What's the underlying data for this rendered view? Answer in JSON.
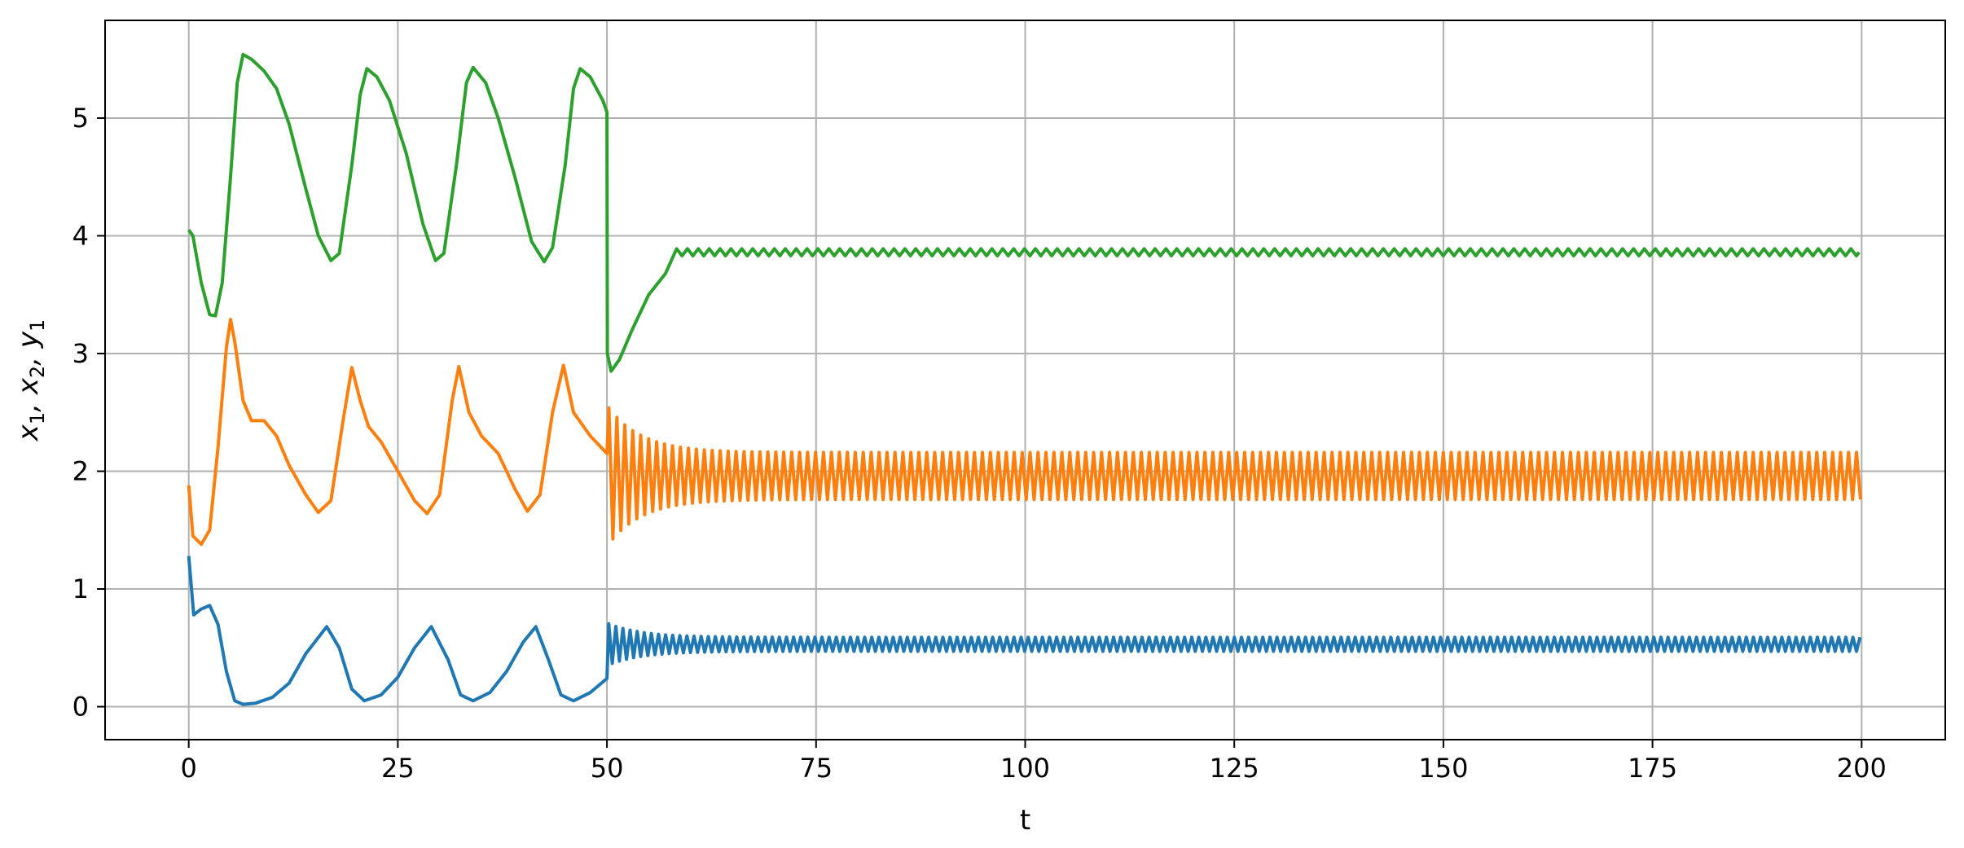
{
  "chart_data": {
    "type": "line",
    "title": "",
    "xlabel": "t",
    "ylabel": {
      "parts": [
        {
          "text": "x",
          "sub": "1"
        },
        {
          "text": ", x",
          "sub": "2"
        },
        {
          "text": ", y",
          "sub": "1"
        }
      ]
    },
    "xlim": [
      -10,
      210
    ],
    "ylim": [
      -0.28,
      5.83
    ],
    "xticks": [
      0,
      25,
      50,
      75,
      100,
      125,
      150,
      175,
      200
    ],
    "yticks": [
      0,
      1,
      2,
      3,
      4,
      5
    ],
    "grid": true,
    "legend": "none",
    "colors": {
      "axis": "#000000",
      "grid": "#b0b0b0"
    },
    "series": [
      {
        "color": "#1f77b4",
        "points": [
          [
            0,
            1.28
          ],
          [
            0.6,
            0.78
          ],
          [
            1.5,
            0.83
          ],
          [
            2.5,
            0.86
          ],
          [
            3.5,
            0.7
          ],
          [
            4.5,
            0.3
          ],
          [
            5.5,
            0.05
          ],
          [
            6.5,
            0.02
          ],
          [
            8,
            0.03
          ],
          [
            10,
            0.08
          ],
          [
            12,
            0.2
          ],
          [
            14,
            0.45
          ],
          [
            16.5,
            0.68
          ],
          [
            18,
            0.5
          ],
          [
            19.5,
            0.15
          ],
          [
            21,
            0.05
          ],
          [
            23,
            0.1
          ],
          [
            25,
            0.25
          ],
          [
            27,
            0.5
          ],
          [
            29,
            0.68
          ],
          [
            31,
            0.4
          ],
          [
            32.5,
            0.1
          ],
          [
            34,
            0.05
          ],
          [
            36,
            0.12
          ],
          [
            38,
            0.3
          ],
          [
            40,
            0.55
          ],
          [
            41.5,
            0.68
          ],
          [
            43,
            0.4
          ],
          [
            44.5,
            0.1
          ],
          [
            46,
            0.05
          ],
          [
            48,
            0.12
          ],
          [
            50,
            0.24
          ]
        ],
        "oscillation": {
          "from": 50,
          "to": 200,
          "center": 0.53,
          "amp_start": 0.18,
          "amp_end": 0.06,
          "period": 0.85
        }
      },
      {
        "color": "#ff7f0e",
        "points": [
          [
            0,
            1.88
          ],
          [
            0.5,
            1.45
          ],
          [
            1.5,
            1.38
          ],
          [
            2.5,
            1.5
          ],
          [
            3.5,
            2.2
          ],
          [
            4.5,
            3.05
          ],
          [
            5,
            3.29
          ],
          [
            5.5,
            3.1
          ],
          [
            6.5,
            2.6
          ],
          [
            7.5,
            2.43
          ],
          [
            9,
            2.43
          ],
          [
            10.5,
            2.3
          ],
          [
            12,
            2.05
          ],
          [
            14,
            1.8
          ],
          [
            15.5,
            1.65
          ],
          [
            17,
            1.75
          ],
          [
            18.5,
            2.45
          ],
          [
            19.5,
            2.88
          ],
          [
            20.5,
            2.6
          ],
          [
            21.5,
            2.38
          ],
          [
            23,
            2.25
          ],
          [
            25,
            2.0
          ],
          [
            27,
            1.75
          ],
          [
            28.5,
            1.64
          ],
          [
            30,
            1.8
          ],
          [
            31.5,
            2.6
          ],
          [
            32.3,
            2.89
          ],
          [
            33.5,
            2.5
          ],
          [
            35,
            2.3
          ],
          [
            37,
            2.15
          ],
          [
            39,
            1.85
          ],
          [
            40.5,
            1.66
          ],
          [
            42,
            1.8
          ],
          [
            43.5,
            2.5
          ],
          [
            44.8,
            2.9
          ],
          [
            46,
            2.5
          ],
          [
            48,
            2.3
          ],
          [
            50,
            2.15
          ]
        ],
        "oscillation": {
          "from": 50,
          "to": 200,
          "center": 1.96,
          "amp_start": 0.6,
          "amp_end": 0.2,
          "period": 0.95
        }
      },
      {
        "color": "#2ca02c",
        "points": [
          [
            0,
            4.05
          ],
          [
            0.5,
            4.0
          ],
          [
            1.5,
            3.6
          ],
          [
            2.5,
            3.33
          ],
          [
            3.2,
            3.32
          ],
          [
            4,
            3.6
          ],
          [
            5,
            4.5
          ],
          [
            5.8,
            5.3
          ],
          [
            6.5,
            5.54
          ],
          [
            7.5,
            5.5
          ],
          [
            9,
            5.4
          ],
          [
            10.5,
            5.25
          ],
          [
            12,
            4.95
          ],
          [
            14,
            4.4
          ],
          [
            15.5,
            4.0
          ],
          [
            17,
            3.79
          ],
          [
            18,
            3.85
          ],
          [
            19.5,
            4.6
          ],
          [
            20.5,
            5.2
          ],
          [
            21.3,
            5.42
          ],
          [
            22.5,
            5.35
          ],
          [
            24,
            5.15
          ],
          [
            26,
            4.7
          ],
          [
            28,
            4.1
          ],
          [
            29.5,
            3.79
          ],
          [
            30.5,
            3.85
          ],
          [
            32,
            4.6
          ],
          [
            33.2,
            5.3
          ],
          [
            34,
            5.43
          ],
          [
            35.5,
            5.3
          ],
          [
            37,
            5.0
          ],
          [
            39,
            4.5
          ],
          [
            41,
            3.95
          ],
          [
            42.5,
            3.78
          ],
          [
            43.5,
            3.9
          ],
          [
            45,
            4.6
          ],
          [
            46,
            5.25
          ],
          [
            46.8,
            5.42
          ],
          [
            48,
            5.35
          ],
          [
            49.5,
            5.15
          ],
          [
            50,
            5.05
          ],
          [
            50.05,
            3.0
          ],
          [
            50.5,
            2.85
          ],
          [
            51.5,
            2.95
          ],
          [
            53,
            3.2
          ],
          [
            55,
            3.5
          ],
          [
            57,
            3.68
          ],
          [
            60,
            3.8
          ],
          [
            64,
            3.84
          ],
          [
            68,
            3.85
          ],
          [
            200,
            3.85
          ]
        ],
        "oscillation": {
          "from": 58,
          "to": 200,
          "center": 3.86,
          "amp_start": 0.03,
          "amp_end": 0.03,
          "period": 1.3
        }
      }
    ]
  }
}
